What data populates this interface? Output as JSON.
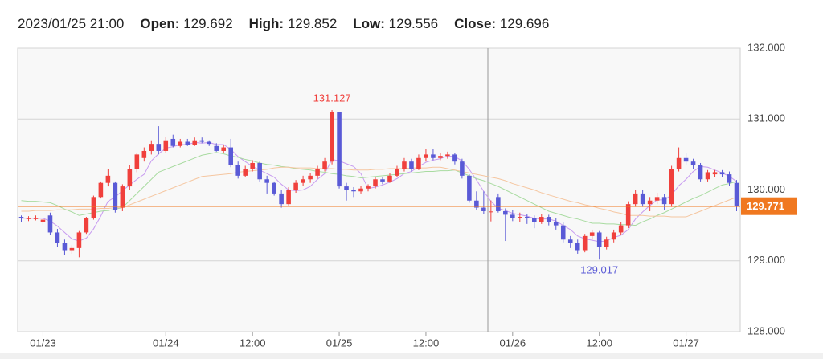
{
  "header": {
    "time": "2023/01/25 21:00",
    "fields": [
      {
        "label": "Open:",
        "value": 129.692
      },
      {
        "label": "High:",
        "value": 129.852
      },
      {
        "label": "Low:",
        "value": 129.556
      },
      {
        "label": "Close:",
        "value": 129.696
      }
    ]
  },
  "chart_data": {
    "type": "candlestick",
    "categories": [
      null,
      null,
      null,
      "01/23",
      null,
      null,
      null,
      null,
      null,
      null,
      null,
      null,
      null,
      null,
      null,
      null,
      null,
      null,
      null,
      null,
      "01/24",
      null,
      null,
      null,
      null,
      null,
      null,
      null,
      null,
      null,
      null,
      null,
      "12:00",
      null,
      null,
      null,
      null,
      null,
      null,
      null,
      null,
      null,
      null,
      null,
      "01/25",
      null,
      null,
      null,
      null,
      null,
      null,
      null,
      null,
      null,
      null,
      null,
      "12:00",
      null,
      null,
      null,
      null,
      null,
      null,
      null,
      null,
      null,
      null,
      null,
      "01/26",
      null,
      null,
      null,
      null,
      null,
      null,
      null,
      null,
      null,
      null,
      null,
      "12:00",
      null,
      null,
      null,
      null,
      null,
      null,
      null,
      null,
      null,
      null,
      null,
      "01/27",
      null,
      null,
      null,
      null,
      null,
      null,
      null
    ],
    "open": [
      129.62,
      129.6,
      129.6,
      129.55,
      129.64,
      129.4,
      129.25,
      129.15,
      129.18,
      129.4,
      129.6,
      129.9,
      130.1,
      130.1,
      129.75,
      130.05,
      130.3,
      130.45,
      130.55,
      130.65,
      130.55,
      130.72,
      130.62,
      130.68,
      130.64,
      130.7,
      130.68,
      130.62,
      130.55,
      130.6,
      130.35,
      130.2,
      130.3,
      130.38,
      130.15,
      130.1,
      129.95,
      129.8,
      130.0,
      130.1,
      130.15,
      130.2,
      130.3,
      130.4,
      131.1,
      130.05,
      130.0,
      129.98,
      130.02,
      130.05,
      130.15,
      130.12,
      130.2,
      130.3,
      130.4,
      130.3,
      130.45,
      130.5,
      130.45,
      130.48,
      130.5,
      130.4,
      130.2,
      129.85,
      129.75,
      129.692,
      129.9,
      129.7,
      129.65,
      129.6,
      129.62,
      129.6,
      129.55,
      129.62,
      129.55,
      129.5,
      129.3,
      129.25,
      129.15,
      129.35,
      129.4,
      129.2,
      129.3,
      129.4,
      129.5,
      129.8,
      129.95,
      129.8,
      129.85,
      129.9,
      129.8,
      130.3,
      130.45,
      130.4,
      130.35,
      130.15,
      130.22,
      130.25,
      130.22,
      130.1
    ],
    "high": [
      129.64,
      129.63,
      129.64,
      129.6,
      129.68,
      129.45,
      129.3,
      129.22,
      129.42,
      129.62,
      129.92,
      130.12,
      130.3,
      130.12,
      130.08,
      130.35,
      130.52,
      130.6,
      130.7,
      130.9,
      130.75,
      130.78,
      130.72,
      130.72,
      130.74,
      130.74,
      130.7,
      130.66,
      130.64,
      130.72,
      130.4,
      130.34,
      130.42,
      130.4,
      130.2,
      130.12,
      130.0,
      130.04,
      130.14,
      130.2,
      130.24,
      130.34,
      130.45,
      131.127,
      131.1,
      130.1,
      130.04,
      130.06,
      130.08,
      130.18,
      130.18,
      130.24,
      130.34,
      130.45,
      130.44,
      130.5,
      130.58,
      130.58,
      130.52,
      130.54,
      130.52,
      130.44,
      130.22,
      129.98,
      129.98,
      129.852,
      129.95,
      129.74,
      129.72,
      129.68,
      129.66,
      129.64,
      129.66,
      129.65,
      129.6,
      129.54,
      129.35,
      129.3,
      129.38,
      129.44,
      129.42,
      129.34,
      129.44,
      129.55,
      129.84,
      130.0,
      130.0,
      129.9,
      129.96,
      129.94,
      130.34,
      130.6,
      130.52,
      130.44,
      130.38,
      130.28,
      130.28,
      130.28,
      130.26,
      130.14
    ],
    "low": [
      129.55,
      129.56,
      129.57,
      129.5,
      129.36,
      129.2,
      129.08,
      129.1,
      129.05,
      129.38,
      129.58,
      129.88,
      130.05,
      129.68,
      129.7,
      130.0,
      130.25,
      130.4,
      130.5,
      130.5,
      130.52,
      130.6,
      130.6,
      130.62,
      130.62,
      130.66,
      130.62,
      130.54,
      130.52,
      130.32,
      130.16,
      130.18,
      130.26,
      130.12,
      129.95,
      129.92,
      129.75,
      129.78,
      129.96,
      130.06,
      130.1,
      130.16,
      130.26,
      130.36,
      130.02,
      129.85,
      129.9,
      129.95,
      129.98,
      130.02,
      130.08,
      130.1,
      130.18,
      130.26,
      130.26,
      130.28,
      130.4,
      130.42,
      130.42,
      130.44,
      130.36,
      130.16,
      129.82,
      129.72,
      129.66,
      129.556,
      129.68,
      129.28,
      129.56,
      129.55,
      129.52,
      129.46,
      129.52,
      129.5,
      129.44,
      129.26,
      129.18,
      129.1,
      129.12,
      129.3,
      129.017,
      129.16,
      129.26,
      129.36,
      129.46,
      129.76,
      129.76,
      129.7,
      129.8,
      129.72,
      129.76,
      130.26,
      130.36,
      130.3,
      130.12,
      130.12,
      130.18,
      130.18,
      130.06,
      129.7
    ],
    "close": [
      129.6,
      129.6,
      129.6,
      129.58,
      129.4,
      129.25,
      129.15,
      129.18,
      129.4,
      129.6,
      129.9,
      130.1,
      130.2,
      129.72,
      130.05,
      130.3,
      130.5,
      130.55,
      130.65,
      130.55,
      130.7,
      130.62,
      130.68,
      130.64,
      130.7,
      130.68,
      130.65,
      130.55,
      130.6,
      130.35,
      130.2,
      130.3,
      130.38,
      130.15,
      130.1,
      129.95,
      129.8,
      130.0,
      130.1,
      130.15,
      130.2,
      130.3,
      130.4,
      131.1,
      130.05,
      130.0,
      129.98,
      130.02,
      130.05,
      130.15,
      130.12,
      130.2,
      130.3,
      130.4,
      130.3,
      130.45,
      130.5,
      130.45,
      130.48,
      130.5,
      130.4,
      130.2,
      129.85,
      129.75,
      129.7,
      129.696,
      129.7,
      129.65,
      129.6,
      129.62,
      129.6,
      129.55,
      129.62,
      129.55,
      129.5,
      129.3,
      129.25,
      129.15,
      129.35,
      129.4,
      129.2,
      129.3,
      129.4,
      129.5,
      129.8,
      129.95,
      129.8,
      129.85,
      129.9,
      129.8,
      130.3,
      130.45,
      130.4,
      130.35,
      130.15,
      130.25,
      130.25,
      130.22,
      130.1,
      129.771
    ],
    "up_color": "#f0403c",
    "down_color": "#5a5ad6",
    "moving_averages": [
      {
        "color": "#c79af0",
        "values": [
          129.6,
          129.6,
          129.6,
          129.6,
          129.56,
          129.49,
          129.4,
          129.31,
          129.28,
          129.32,
          129.45,
          129.63,
          129.84,
          129.9,
          129.99,
          130.07,
          130.15,
          130.22,
          130.41,
          130.51,
          130.59,
          130.61,
          130.64,
          130.64,
          130.67,
          130.66,
          130.67,
          130.64,
          130.64,
          130.57,
          130.47,
          130.4,
          130.33,
          130.28,
          130.23,
          130.18,
          130.08,
          130.0,
          129.99,
          130.0,
          130.05,
          130.15,
          130.23,
          130.43,
          130.41,
          130.37,
          130.33,
          130.23,
          130.02,
          130.04,
          130.07,
          130.11,
          130.16,
          130.23,
          130.26,
          130.33,
          130.39,
          130.42,
          130.44,
          130.48,
          130.47,
          130.41,
          130.29,
          130.14,
          129.98,
          129.84,
          129.74,
          129.71,
          129.67,
          129.65,
          129.63,
          129.6,
          129.59,
          129.59,
          129.56,
          129.5,
          129.44,
          129.35,
          129.31,
          129.29,
          129.27,
          129.28,
          129.33,
          129.36,
          129.44,
          129.59,
          129.69,
          129.78,
          129.86,
          129.86,
          129.93,
          130.06,
          130.15,
          130.26,
          130.33,
          130.32,
          130.28,
          130.24,
          130.19,
          130.12
        ]
      },
      {
        "color": "#a8dba0",
        "values": [
          129.85,
          129.84,
          129.84,
          129.83,
          129.82,
          129.78,
          129.73,
          129.69,
          129.64,
          129.66,
          129.68,
          129.7,
          129.71,
          129.73,
          129.75,
          129.85,
          129.95,
          130.05,
          130.15,
          130.25,
          130.29,
          130.33,
          130.37,
          130.41,
          130.45,
          130.49,
          130.51,
          130.53,
          130.51,
          130.48,
          130.46,
          130.43,
          130.41,
          130.38,
          130.36,
          130.35,
          130.33,
          130.32,
          130.3,
          130.29,
          130.28,
          130.26,
          130.25,
          130.23,
          130.22,
          130.2,
          130.19,
          130.17,
          130.18,
          130.19,
          130.2,
          130.21,
          130.22,
          130.23,
          130.24,
          130.25,
          130.26,
          130.26,
          130.27,
          130.27,
          130.28,
          130.24,
          130.2,
          130.16,
          130.13,
          130.09,
          130.05,
          130.0,
          129.95,
          129.9,
          129.85,
          129.8,
          129.75,
          129.7,
          129.67,
          129.64,
          129.61,
          129.59,
          129.56,
          129.53,
          129.53,
          129.52,
          129.52,
          129.51,
          129.51,
          129.5,
          129.55,
          129.59,
          129.64,
          129.68,
          129.73,
          129.78,
          129.83,
          129.88,
          129.92,
          129.97,
          130.02,
          130.07,
          130.09,
          130.12
        ]
      },
      {
        "color": "#f5c6a0",
        "values": [
          129.7,
          129.7,
          129.71,
          129.71,
          129.71,
          129.72,
          129.72,
          129.72,
          129.73,
          129.73,
          129.73,
          129.74,
          129.74,
          129.75,
          129.75,
          129.79,
          129.83,
          129.87,
          129.91,
          129.95,
          129.99,
          130.03,
          130.07,
          130.11,
          130.15,
          130.19,
          130.2,
          130.21,
          130.22,
          130.23,
          130.25,
          130.26,
          130.27,
          130.28,
          130.29,
          130.31,
          130.32,
          130.32,
          130.31,
          130.31,
          130.31,
          130.3,
          130.3,
          130.3,
          130.29,
          130.29,
          130.28,
          130.28,
          130.28,
          130.29,
          130.29,
          130.3,
          130.3,
          130.3,
          130.31,
          130.31,
          130.31,
          130.32,
          130.32,
          130.3,
          130.28,
          130.26,
          130.24,
          130.22,
          130.2,
          130.18,
          130.16,
          130.13,
          130.09,
          130.06,
          130.03,
          130.0,
          129.96,
          129.93,
          129.9,
          129.87,
          129.84,
          129.82,
          129.79,
          129.77,
          129.74,
          129.72,
          129.69,
          129.67,
          129.64,
          129.64,
          129.64,
          129.63,
          129.63,
          129.63,
          129.62,
          129.62,
          129.62,
          129.66,
          129.7,
          129.74,
          129.78,
          129.82,
          129.86,
          129.9
        ]
      }
    ],
    "max_label": 131.127,
    "min_label": 129.017,
    "current_price": 129.771,
    "current_price_color": "#f07820",
    "ylim": [
      128,
      132
    ],
    "yticks": [
      {
        "value": 128,
        "label": "128.000"
      },
      {
        "value": 129,
        "label": "129.000"
      },
      {
        "value": 130,
        "label": "130.000"
      },
      {
        "value": 131,
        "label": "131.000"
      },
      {
        "value": 132,
        "label": "132.000"
      }
    ],
    "grid": true
  }
}
